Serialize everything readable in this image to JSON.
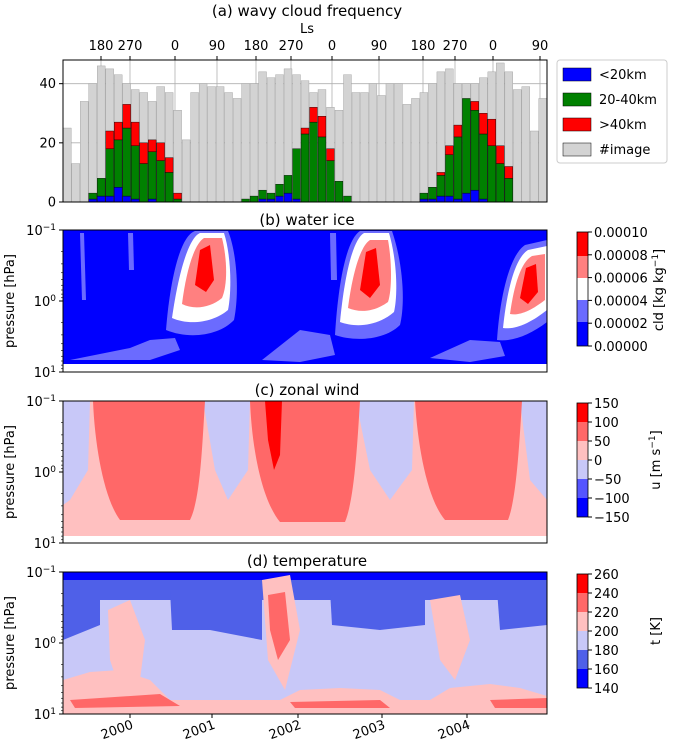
{
  "panels": {
    "a": {
      "title": "(a) wavy cloud frequency",
      "top_axis_label": "Ls",
      "yticks": [
        "0",
        "20",
        "40"
      ]
    },
    "b": {
      "title": "(b) water ice"
    },
    "c": {
      "title": "(c) zonal wind"
    },
    "d": {
      "title": "(d) temperature"
    }
  },
  "pressure_axis": {
    "label": "pressure [hPa]",
    "ticks": [
      {
        "base": "10",
        "exp": "−1",
        "value": 0.1
      },
      {
        "base": "10",
        "exp": "0",
        "value": 1
      },
      {
        "base": "10",
        "exp": "1",
        "value": 10
      }
    ]
  },
  "time_axis": {
    "labels": [
      "2000",
      "2001",
      "2002",
      "2003",
      "2004"
    ]
  },
  "ls_ticks": [
    "180",
    "270",
    "0",
    "90",
    "180",
    "270",
    "0",
    "90",
    "180",
    "270",
    "0",
    "90"
  ],
  "colorbars": {
    "b": {
      "label_main": "cld [kg kg",
      "label_exp": "−1",
      "label_end": "]",
      "ticks": [
        "0.00010",
        "0.00008",
        "0.00006",
        "0.00004",
        "0.00002",
        "0.00000"
      ],
      "colors": [
        "#0000ff",
        "#6b6bff",
        "#ffffff",
        "#ff8080",
        "#ff0000"
      ]
    },
    "c": {
      "label_main": "u [m s",
      "label_exp": "−1",
      "label_end": "]",
      "ticks": [
        "150",
        "100",
        "50",
        "0",
        "−50",
        "−100",
        "−150"
      ],
      "colors": [
        "#0000ff",
        "#5555ff",
        "#c8c8f8",
        "#ffc0c0",
        "#ff6868",
        "#ff0000"
      ]
    },
    "d": {
      "label_main": "t [K]",
      "label_exp": "",
      "label_end": "",
      "ticks": [
        "260",
        "240",
        "220",
        "200",
        "180",
        "160",
        "140"
      ],
      "colors": [
        "#0000ff",
        "#4f60e8",
        "#c8c8f8",
        "#ffc0c0",
        "#ff6868",
        "#ff0000"
      ]
    }
  },
  "chart_data": [
    {
      "type": "bar",
      "title": "(a) wavy cloud frequency",
      "xlabel": "Ls",
      "ylabel": "",
      "ylim": [
        0,
        48
      ],
      "legend": {
        "placement": "outside-right"
      },
      "series": [
        {
          "name": "<20km",
          "color": "#0000ff",
          "values": [
            0,
            0,
            0,
            1,
            2,
            2,
            5,
            2,
            1,
            0,
            1,
            0,
            0,
            0,
            0,
            0,
            0,
            0,
            0,
            0,
            0,
            0,
            0,
            1,
            1,
            2,
            3,
            1,
            0,
            0,
            0,
            0,
            0,
            0,
            0,
            0,
            0,
            0,
            0,
            0,
            0,
            0,
            1,
            1,
            2,
            2,
            1,
            3,
            4,
            1,
            0,
            0,
            0,
            0,
            0,
            0,
            0
          ]
        },
        {
          "name": "20-40km",
          "color": "#008000",
          "values": [
            0,
            0,
            0,
            2,
            6,
            16,
            16,
            23,
            18,
            13,
            16,
            14,
            10,
            1,
            0,
            0,
            0,
            0,
            0,
            0,
            0,
            1,
            2,
            3,
            2,
            4,
            6,
            17,
            23,
            27,
            22,
            14,
            7,
            2,
            0,
            0,
            0,
            0,
            0,
            0,
            0,
            0,
            2,
            4,
            7,
            14,
            21,
            32,
            27,
            22,
            19,
            13,
            8,
            0,
            0,
            0,
            0
          ]
        },
        {
          "name": ">40km",
          "color": "#ff0000",
          "values": [
            0,
            0,
            0,
            0,
            0,
            6,
            6,
            8,
            8,
            7,
            4,
            6,
            5,
            2,
            0,
            0,
            0,
            0,
            0,
            0,
            0,
            0,
            0,
            0,
            0,
            0,
            0,
            0,
            2,
            5,
            7,
            4,
            0,
            0,
            0,
            0,
            0,
            0,
            0,
            0,
            0,
            0,
            0,
            0,
            1,
            3,
            4,
            0,
            3,
            7,
            9,
            6,
            4,
            0,
            0,
            0,
            0
          ]
        },
        {
          "name": "#image",
          "color": "#d3d3d3",
          "values": [
            25,
            13,
            34,
            40,
            46,
            45,
            43,
            40,
            38,
            37,
            34,
            39,
            37,
            31,
            21,
            37,
            40,
            39,
            39,
            37,
            35,
            40,
            40,
            44,
            42,
            43,
            45,
            43,
            41,
            37,
            38,
            32,
            31,
            43,
            37,
            37,
            40,
            36,
            40,
            40,
            33,
            35,
            37,
            40,
            44,
            45,
            40,
            40,
            40,
            42,
            44,
            47,
            44,
            38,
            39,
            24,
            35
          ]
        }
      ],
      "ls_ticks": [
        "180",
        "270",
        "0",
        "90",
        "180",
        "270",
        "0",
        "90",
        "180",
        "270",
        "0",
        "90"
      ]
    },
    {
      "type": "heatmap",
      "title": "(b) water ice",
      "ylabel": "pressure [hPa]",
      "y_scale": "log",
      "ylim": [
        10,
        0.1
      ],
      "x_labels": [
        "2000",
        "2001",
        "2002",
        "2003",
        "2004"
      ],
      "colorbar": {
        "label": "cld [kg kg−1]",
        "range": [
          0,
          0.0001
        ],
        "levels": [
          0,
          2e-05,
          4e-05,
          6e-05,
          8e-05,
          0.0001
        ]
      }
    },
    {
      "type": "heatmap",
      "title": "(c) zonal wind",
      "ylabel": "pressure [hPa]",
      "y_scale": "log",
      "ylim": [
        10,
        0.1
      ],
      "x_labels": [
        "2000",
        "2001",
        "2002",
        "2003",
        "2004"
      ],
      "colorbar": {
        "label": "u [m s−1]",
        "range": [
          -150,
          150
        ],
        "levels": [
          -150,
          -100,
          -50,
          0,
          50,
          100,
          150
        ]
      }
    },
    {
      "type": "heatmap",
      "title": "(d) temperature",
      "ylabel": "pressure [hPa]",
      "y_scale": "log",
      "ylim": [
        10,
        0.1
      ],
      "x_labels": [
        "2000",
        "2001",
        "2002",
        "2003",
        "2004"
      ],
      "colorbar": {
        "label": "t [K]",
        "range": [
          140,
          260
        ],
        "levels": [
          140,
          160,
          180,
          200,
          220,
          240,
          260
        ]
      }
    }
  ]
}
